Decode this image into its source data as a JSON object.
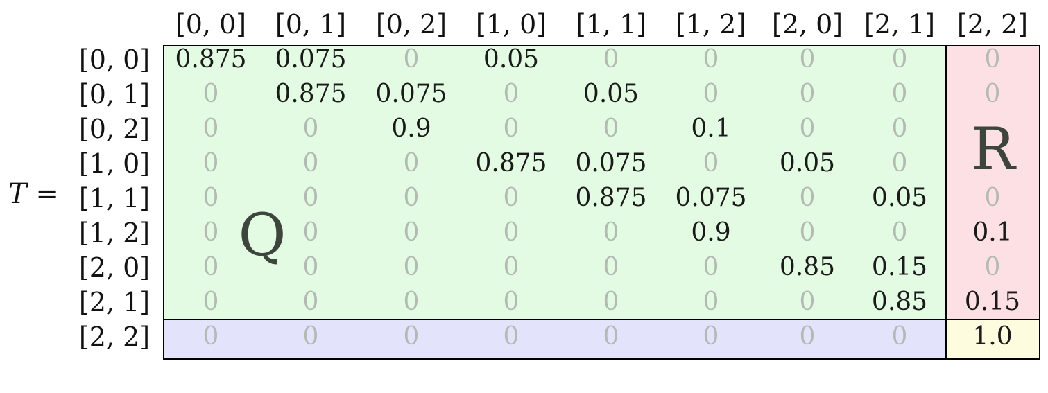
{
  "matrix_name": "T",
  "equals": "=",
  "column_labels": [
    "[0, 0]",
    "[0, 1]",
    "[0, 2]",
    "[1, 0]",
    "[1, 1]",
    "[1, 2]",
    "[2, 0]",
    "[2, 1]",
    "[2, 2]"
  ],
  "row_labels": [
    "[0, 0]",
    "[0, 1]",
    "[0, 2]",
    "[1, 0]",
    "[1, 1]",
    "[1, 2]",
    "[2, 0]",
    "[2, 1]",
    "[2, 2]"
  ],
  "rows": [
    [
      "0.875",
      "0.075",
      "0",
      "0.05",
      "0",
      "0",
      "0",
      "0",
      "0"
    ],
    [
      "0",
      "0.875",
      "0.075",
      "0",
      "0.05",
      "0",
      "0",
      "0",
      "0"
    ],
    [
      "0",
      "0",
      "0.9",
      "0",
      "0",
      "0.1",
      "0",
      "0",
      ""
    ],
    [
      "0",
      "0",
      "0",
      "0.875",
      "0.075",
      "0",
      "0.05",
      "0",
      ""
    ],
    [
      "0",
      "0",
      "0",
      "0",
      "0.875",
      "0.075",
      "0",
      "0.05",
      "0"
    ],
    [
      "0",
      "0",
      "0",
      "0",
      "0",
      "0.9",
      "0",
      "0",
      "0.1"
    ],
    [
      "0",
      "0",
      "0",
      "0",
      "0",
      "0",
      "0.85",
      "0.15",
      "0"
    ],
    [
      "0",
      "0",
      "0",
      "0",
      "0",
      "0",
      "0",
      "0.85",
      "0.15"
    ],
    [
      "0",
      "0",
      "0",
      "0",
      "0",
      "0",
      "0",
      "0",
      "1.0"
    ]
  ],
  "region_labels": {
    "q": "Q",
    "r": "R"
  },
  "colors": {
    "q_region": "#e3fbe3",
    "r_region": "#fde0e3",
    "bottom_region": "#e3e3fb",
    "identity_region": "#fdfcde",
    "zero_text": "#b3bab3",
    "value_text": "#1a1a1a"
  }
}
